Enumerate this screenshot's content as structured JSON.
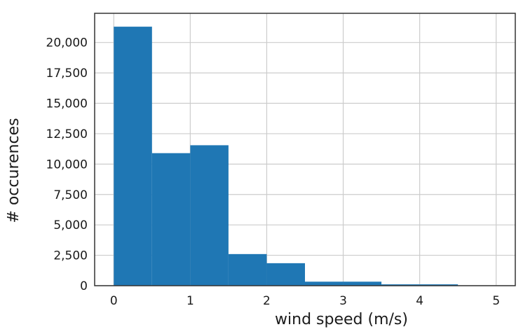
{
  "chart_data": {
    "type": "bar",
    "title": "",
    "xlabel": "wind speed (m/s)",
    "ylabel": "# occurences",
    "bins": [
      {
        "start": 0.0,
        "end": 0.5,
        "count": 21300
      },
      {
        "start": 0.5,
        "end": 1.0,
        "count": 10900
      },
      {
        "start": 1.0,
        "end": 1.5,
        "count": 11550
      },
      {
        "start": 1.5,
        "end": 2.0,
        "count": 2600
      },
      {
        "start": 2.0,
        "end": 2.5,
        "count": 1850
      },
      {
        "start": 2.5,
        "end": 3.0,
        "count": 330
      },
      {
        "start": 3.0,
        "end": 3.5,
        "count": 330
      },
      {
        "start": 3.5,
        "end": 4.0,
        "count": 110
      },
      {
        "start": 4.0,
        "end": 4.5,
        "count": 110
      },
      {
        "start": 4.5,
        "end": 5.0,
        "count": 20
      }
    ],
    "xlim": [
      -0.25,
      5.25
    ],
    "ylim": [
      0,
      22400
    ],
    "xticks": [
      0,
      1,
      2,
      3,
      4,
      5
    ],
    "xtick_labels": [
      "0",
      "1",
      "2",
      "3",
      "4",
      "5"
    ],
    "yticks": [
      0,
      2500,
      5000,
      7500,
      10000,
      12500,
      15000,
      17500,
      20000
    ],
    "ytick_labels": [
      "0",
      "2,500",
      "5,000",
      "7,500",
      "10,000",
      "12,500",
      "15,000",
      "17,500",
      "20,000"
    ],
    "grid": true,
    "legend": "none",
    "colors": {
      "bar": "#1f77b4",
      "grid": "#cccccc",
      "frame": "#333333",
      "background": "#ffffff"
    }
  }
}
